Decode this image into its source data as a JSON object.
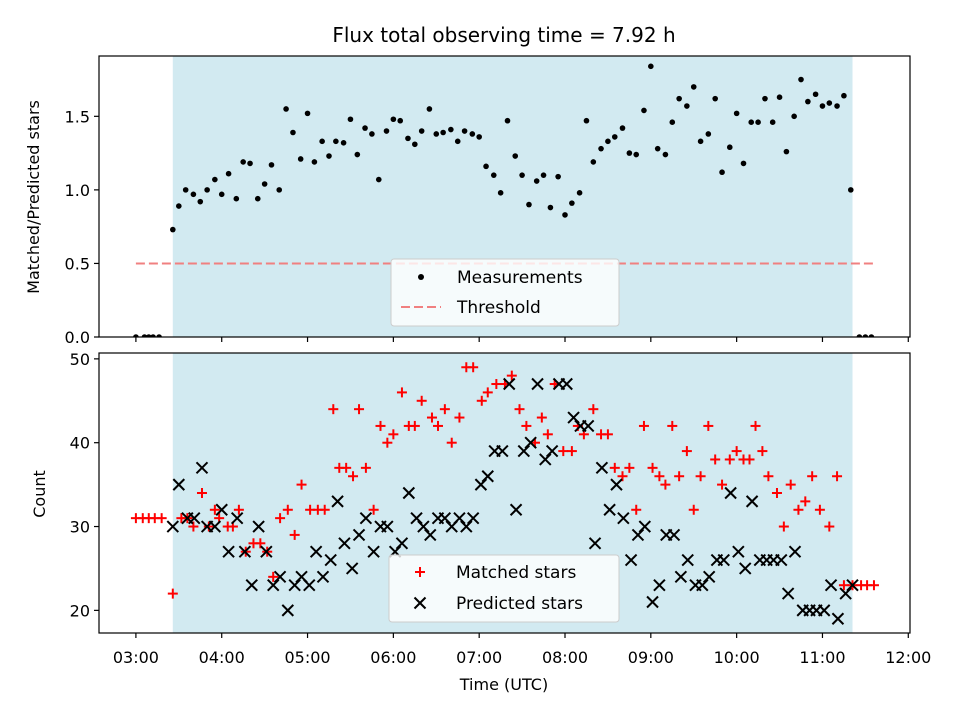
{
  "title": "Flux total observing time = 7.92 h",
  "colors": {
    "shade": "#add8e6",
    "measurement": "#000000",
    "threshold": "#f08080",
    "matched": "#ff0000",
    "predicted": "#000000"
  },
  "chart_data": [
    {
      "type": "scatter",
      "panel": "top",
      "ylabel": "Matched/Predicted stars",
      "xlim": [
        2.57,
        12.02
      ],
      "ylim": [
        0,
        1.91
      ],
      "yticks": [
        0.0,
        0.5,
        1.0,
        1.5
      ],
      "ytick_labels": [
        "0.0",
        "0.5",
        "1.0",
        "1.5"
      ],
      "shaded_span": [
        3.43,
        11.35
      ],
      "legend": {
        "placement": "lower center",
        "entries": [
          "Measurements",
          "Threshold"
        ]
      },
      "threshold": {
        "name": "Threshold",
        "y": 0.5,
        "x": [
          3.0,
          11.6
        ]
      },
      "series": [
        {
          "name": "Measurements",
          "marker": "dot",
          "x": [
            3.0,
            3.1,
            3.15,
            3.2,
            3.27,
            3.43,
            3.5,
            3.58,
            3.67,
            3.75,
            3.83,
            3.92,
            4.0,
            4.08,
            4.17,
            4.25,
            4.33,
            4.42,
            4.5,
            4.58,
            4.67,
            4.75,
            4.83,
            4.92,
            5.0,
            5.08,
            5.17,
            5.25,
            5.33,
            5.42,
            5.5,
            5.58,
            5.67,
            5.75,
            5.83,
            5.92,
            6.0,
            6.08,
            6.17,
            6.25,
            6.33,
            6.42,
            6.5,
            6.58,
            6.67,
            6.75,
            6.83,
            6.92,
            7.0,
            7.08,
            7.17,
            7.25,
            7.33,
            7.42,
            7.5,
            7.58,
            7.67,
            7.75,
            7.83,
            7.92,
            8.0,
            8.08,
            8.17,
            8.25,
            8.33,
            8.42,
            8.5,
            8.58,
            8.67,
            8.75,
            8.83,
            8.92,
            9.0,
            9.08,
            9.17,
            9.25,
            9.33,
            9.42,
            9.5,
            9.58,
            9.67,
            9.75,
            9.83,
            9.92,
            10.0,
            10.08,
            10.17,
            10.25,
            10.33,
            10.42,
            10.5,
            10.58,
            10.67,
            10.75,
            10.83,
            10.92,
            11.0,
            11.08,
            11.17,
            11.25,
            11.33,
            11.43,
            11.5,
            11.57
          ],
          "y": [
            0.0,
            0.0,
            0.0,
            0.0,
            0.0,
            0.73,
            0.89,
            1.0,
            0.97,
            0.92,
            1.0,
            1.07,
            0.97,
            1.11,
            0.94,
            1.19,
            1.18,
            0.94,
            1.04,
            1.17,
            1.0,
            1.55,
            1.39,
            1.21,
            1.52,
            1.19,
            1.33,
            1.23,
            1.33,
            1.32,
            1.48,
            1.24,
            1.42,
            1.38,
            1.07,
            1.4,
            1.48,
            1.47,
            1.35,
            1.31,
            1.4,
            1.55,
            1.38,
            1.39,
            1.41,
            1.33,
            1.4,
            1.38,
            1.36,
            1.16,
            1.1,
            0.98,
            1.47,
            1.23,
            1.1,
            0.9,
            1.06,
            1.1,
            0.88,
            1.09,
            0.83,
            0.91,
            0.98,
            1.47,
            1.19,
            1.28,
            1.33,
            1.36,
            1.42,
            1.25,
            1.24,
            1.54,
            1.84,
            1.28,
            1.24,
            1.46,
            1.62,
            1.57,
            1.7,
            1.33,
            1.38,
            1.62,
            1.12,
            1.29,
            1.52,
            1.18,
            1.46,
            1.46,
            1.62,
            1.46,
            1.63,
            1.26,
            1.5,
            1.75,
            1.6,
            1.65,
            1.57,
            1.59,
            1.57,
            1.64,
            1.0,
            0.0,
            0.0,
            0.0
          ]
        }
      ]
    },
    {
      "type": "scatter",
      "panel": "bottom",
      "xlabel": "Time (UTC)",
      "ylabel": "Count",
      "xlim": [
        2.57,
        12.02
      ],
      "ylim": [
        17.3,
        50.7
      ],
      "yticks": [
        20,
        30,
        40,
        50
      ],
      "ytick_labels": [
        "20",
        "30",
        "40",
        "50"
      ],
      "xticks": [
        3,
        4,
        5,
        6,
        7,
        8,
        9,
        10,
        11,
        12
      ],
      "xtick_labels": [
        "03:00",
        "04:00",
        "05:00",
        "06:00",
        "07:00",
        "08:00",
        "09:00",
        "10:00",
        "11:00",
        "12:00"
      ],
      "shaded_span": [
        3.43,
        11.35
      ],
      "legend": {
        "placement": "lower center",
        "entries": [
          "Matched stars",
          "Predicted stars"
        ]
      },
      "series": [
        {
          "name": "Matched stars",
          "marker": "plus",
          "x": [
            3.0,
            3.08,
            3.15,
            3.22,
            3.3,
            3.43,
            3.53,
            3.6,
            3.67,
            3.77,
            3.85,
            3.92,
            3.97,
            4.07,
            4.13,
            4.2,
            4.28,
            4.37,
            4.45,
            4.53,
            4.6,
            4.68,
            4.77,
            4.85,
            4.93,
            5.03,
            5.12,
            5.2,
            5.3,
            5.37,
            5.45,
            5.53,
            5.6,
            5.68,
            5.77,
            5.85,
            5.93,
            6.0,
            6.1,
            6.18,
            6.25,
            6.33,
            6.45,
            6.52,
            6.6,
            6.68,
            6.77,
            6.85,
            6.93,
            7.03,
            7.1,
            7.2,
            7.3,
            7.38,
            7.47,
            7.55,
            7.65,
            7.73,
            7.8,
            7.88,
            7.98,
            8.08,
            8.15,
            8.22,
            8.33,
            8.42,
            8.5,
            8.58,
            8.67,
            8.75,
            8.83,
            8.92,
            9.02,
            9.1,
            9.17,
            9.25,
            9.33,
            9.42,
            9.5,
            9.58,
            9.67,
            9.75,
            9.83,
            9.92,
            10.0,
            10.08,
            10.15,
            10.22,
            10.3,
            10.37,
            10.47,
            10.55,
            10.63,
            10.72,
            10.8,
            10.88,
            10.97,
            11.08,
            11.17,
            11.25,
            11.35,
            11.45,
            11.52,
            11.6
          ],
          "y": [
            31,
            31,
            31,
            31,
            31,
            22,
            31,
            31,
            30,
            34,
            30,
            32,
            31,
            30,
            30,
            32,
            27,
            28,
            28,
            27,
            24,
            31,
            32,
            29,
            35,
            32,
            32,
            32,
            44,
            37,
            37,
            36,
            44,
            37,
            32,
            42,
            40,
            41,
            46,
            42,
            42,
            45,
            43,
            42,
            44,
            40,
            43,
            49,
            49,
            45,
            46,
            47,
            47,
            48,
            44,
            42,
            40,
            43,
            41,
            47,
            39,
            39,
            42,
            41,
            44,
            41,
            41,
            37,
            36,
            37,
            32,
            42,
            37,
            36,
            35,
            42,
            36,
            39,
            32,
            36,
            42,
            38,
            35,
            38,
            39,
            38,
            38,
            42,
            39,
            36,
            34,
            30,
            35,
            32,
            33,
            36,
            32,
            30,
            36,
            23,
            23,
            23,
            23,
            23
          ]
        },
        {
          "name": "Predicted stars",
          "marker": "x",
          "x": [
            3.43,
            3.5,
            3.6,
            3.68,
            3.77,
            3.83,
            3.92,
            4.0,
            4.08,
            4.18,
            4.27,
            4.35,
            4.43,
            4.52,
            4.6,
            4.68,
            4.77,
            4.85,
            4.93,
            5.02,
            5.1,
            5.18,
            5.27,
            5.35,
            5.43,
            5.52,
            5.6,
            5.68,
            5.77,
            5.85,
            5.93,
            6.02,
            6.1,
            6.18,
            6.27,
            6.35,
            6.43,
            6.52,
            6.6,
            6.68,
            6.77,
            6.85,
            6.93,
            7.02,
            7.1,
            7.18,
            7.27,
            7.35,
            7.43,
            7.52,
            7.6,
            7.68,
            7.77,
            7.85,
            7.93,
            8.02,
            8.1,
            8.18,
            8.27,
            8.35,
            8.43,
            8.52,
            8.6,
            8.68,
            8.77,
            8.85,
            8.93,
            9.02,
            9.1,
            9.18,
            9.27,
            9.35,
            9.43,
            9.52,
            9.6,
            9.68,
            9.77,
            9.85,
            9.93,
            10.02,
            10.1,
            10.18,
            10.27,
            10.35,
            10.43,
            10.52,
            10.6,
            10.68,
            10.77,
            10.85,
            10.93,
            11.02,
            11.1,
            11.18,
            11.27,
            11.35
          ],
          "y": [
            30,
            35,
            31,
            31,
            37,
            30,
            30,
            32,
            27,
            31,
            27,
            23,
            30,
            27,
            23,
            24,
            20,
            23,
            24,
            23,
            27,
            24,
            26,
            33,
            28,
            25,
            29,
            31,
            27,
            30,
            30,
            27,
            28,
            34,
            31,
            30,
            29,
            31,
            31,
            30,
            31,
            30,
            31,
            35,
            36,
            39,
            39,
            47,
            32,
            39,
            40,
            47,
            38,
            39,
            47,
            47,
            43,
            42,
            42,
            28,
            37,
            32,
            35,
            31,
            26,
            29,
            30,
            21,
            23,
            29,
            29,
            24,
            26,
            23,
            23,
            24,
            26,
            26,
            34,
            27,
            25,
            33,
            26,
            26,
            26,
            26,
            22,
            27,
            20,
            20,
            20,
            20,
            23,
            19,
            22,
            23
          ]
        }
      ]
    }
  ]
}
